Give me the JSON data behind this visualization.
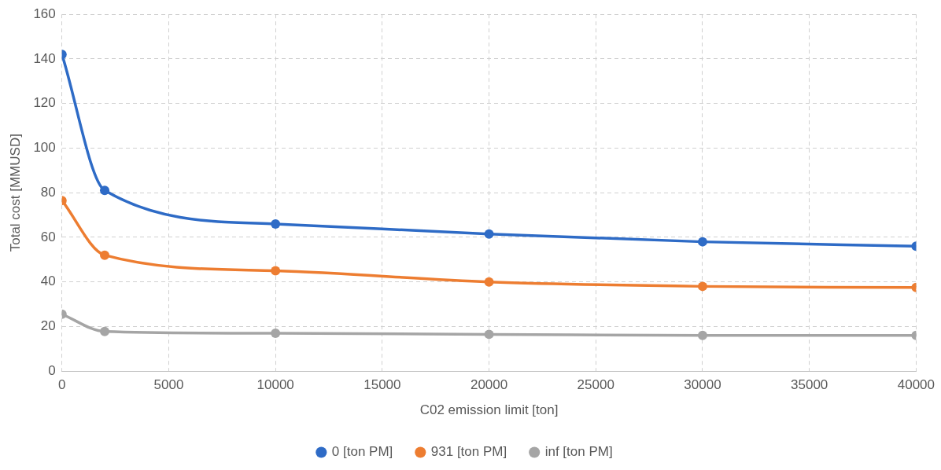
{
  "chart_data": {
    "type": "line",
    "xlabel": "C02 emission limit [ton]",
    "ylabel": "Total cost [MMUSD]",
    "x": [
      0,
      2000,
      10000,
      20000,
      30000,
      40000
    ],
    "series": [
      {
        "name": "0 [ton PM]",
        "color": "#2e6bc6",
        "values": [
          142,
          81,
          66,
          61.5,
          58,
          56
        ]
      },
      {
        "name": "931 [ton PM]",
        "color": "#ed7d31",
        "values": [
          76.5,
          52,
          45,
          40,
          38,
          37.5
        ]
      },
      {
        "name": "inf [ton PM]",
        "color": "#a5a5a5",
        "values": [
          25.5,
          17.8,
          17,
          16.5,
          16,
          16
        ]
      }
    ],
    "xlim": [
      0,
      40000
    ],
    "xticks": [
      0,
      5000,
      10000,
      15000,
      20000,
      25000,
      30000,
      35000,
      40000
    ],
    "ylim": [
      0,
      160
    ],
    "yticks": [
      0,
      20,
      40,
      60,
      80,
      100,
      120,
      140,
      160
    ],
    "grid": true,
    "legend": "bottom",
    "marker": "circle",
    "line_style": "solid"
  }
}
